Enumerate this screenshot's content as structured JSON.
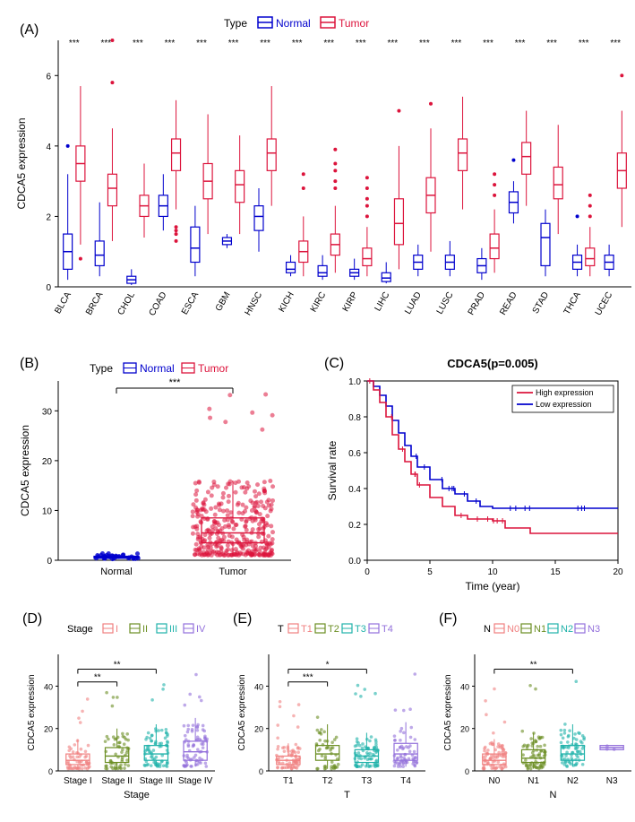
{
  "panelA": {
    "label": "(A)",
    "type": "boxplot-grouped",
    "legend": {
      "title": "Type",
      "items": [
        {
          "label": "Normal",
          "color": "#0000cd"
        },
        {
          "label": "Tumor",
          "color": "#dc143c"
        }
      ]
    },
    "ylabel": "CDCA5 expression",
    "ylim": [
      0,
      7
    ],
    "yticks": [
      0,
      2,
      4,
      6
    ],
    "categories": [
      "BLCA",
      "BRCA",
      "CHOL",
      "COAD",
      "ESCA",
      "GBM",
      "HNSC",
      "KICH",
      "KIRC",
      "KIRP",
      "LIHC",
      "LUAD",
      "LUSC",
      "PRAD",
      "READ",
      "STAD",
      "THCA",
      "UCEC"
    ],
    "sig": [
      "***",
      "***",
      "***",
      "***",
      "***",
      "***",
      "***",
      "***",
      "***",
      "***",
      "***",
      "***",
      "***",
      "***",
      "***",
      "***",
      "***",
      "***"
    ],
    "boxes_normal": [
      {
        "q1": 0.5,
        "med": 1.0,
        "q3": 1.5,
        "wl": 0.2,
        "wh": 3.2,
        "out": [
          4.0
        ]
      },
      {
        "q1": 0.6,
        "med": 0.9,
        "q3": 1.3,
        "wl": 0.3,
        "wh": 2.4,
        "out": []
      },
      {
        "q1": 0.1,
        "med": 0.2,
        "q3": 0.3,
        "wl": 0.05,
        "wh": 0.5,
        "out": []
      },
      {
        "q1": 2.0,
        "med": 2.3,
        "q3": 2.6,
        "wl": 1.6,
        "wh": 3.2,
        "out": []
      },
      {
        "q1": 0.7,
        "med": 1.1,
        "q3": 1.7,
        "wl": 0.3,
        "wh": 2.3,
        "out": []
      },
      {
        "q1": 1.2,
        "med": 1.3,
        "q3": 1.4,
        "wl": 1.1,
        "wh": 1.5,
        "out": []
      },
      {
        "q1": 1.6,
        "med": 2.0,
        "q3": 2.3,
        "wl": 1.0,
        "wh": 2.8,
        "out": []
      },
      {
        "q1": 0.4,
        "med": 0.5,
        "q3": 0.7,
        "wl": 0.3,
        "wh": 0.9,
        "out": []
      },
      {
        "q1": 0.3,
        "med": 0.4,
        "q3": 0.6,
        "wl": 0.2,
        "wh": 0.9,
        "out": []
      },
      {
        "q1": 0.3,
        "med": 0.4,
        "q3": 0.5,
        "wl": 0.2,
        "wh": 0.8,
        "out": []
      },
      {
        "q1": 0.15,
        "med": 0.25,
        "q3": 0.4,
        "wl": 0.1,
        "wh": 0.7,
        "out": []
      },
      {
        "q1": 0.5,
        "med": 0.7,
        "q3": 0.9,
        "wl": 0.3,
        "wh": 1.2,
        "out": []
      },
      {
        "q1": 0.5,
        "med": 0.7,
        "q3": 0.9,
        "wl": 0.3,
        "wh": 1.3,
        "out": []
      },
      {
        "q1": 0.4,
        "med": 0.6,
        "q3": 0.8,
        "wl": 0.2,
        "wh": 1.1,
        "out": []
      },
      {
        "q1": 2.1,
        "med": 2.4,
        "q3": 2.7,
        "wl": 1.8,
        "wh": 3.0,
        "out": [
          3.6
        ]
      },
      {
        "q1": 0.6,
        "med": 1.4,
        "q3": 1.8,
        "wl": 0.3,
        "wh": 2.2,
        "out": []
      },
      {
        "q1": 0.5,
        "med": 0.7,
        "q3": 0.9,
        "wl": 0.3,
        "wh": 1.2,
        "out": [
          2.0
        ]
      },
      {
        "q1": 0.5,
        "med": 0.7,
        "q3": 0.9,
        "wl": 0.3,
        "wh": 1.2,
        "out": []
      }
    ],
    "boxes_tumor": [
      {
        "q1": 3.0,
        "med": 3.5,
        "q3": 4.0,
        "wl": 1.2,
        "wh": 5.7,
        "out": [
          0.8
        ]
      },
      {
        "q1": 2.3,
        "med": 2.8,
        "q3": 3.2,
        "wl": 1.3,
        "wh": 4.5,
        "out": [
          5.8,
          7.0
        ]
      },
      {
        "q1": 2.0,
        "med": 2.3,
        "q3": 2.6,
        "wl": 1.4,
        "wh": 3.5,
        "out": []
      },
      {
        "q1": 3.3,
        "med": 3.8,
        "q3": 4.2,
        "wl": 2.2,
        "wh": 5.3,
        "out": [
          1.3,
          1.5,
          1.6,
          1.7
        ]
      },
      {
        "q1": 2.5,
        "med": 3.0,
        "q3": 3.5,
        "wl": 1.5,
        "wh": 4.9,
        "out": []
      },
      {
        "q1": 2.4,
        "med": 2.9,
        "q3": 3.3,
        "wl": 1.5,
        "wh": 4.3,
        "out": []
      },
      {
        "q1": 3.3,
        "med": 3.8,
        "q3": 4.2,
        "wl": 2.3,
        "wh": 5.7,
        "out": []
      },
      {
        "q1": 0.7,
        "med": 1.0,
        "q3": 1.3,
        "wl": 0.3,
        "wh": 2.0,
        "out": [
          2.8,
          3.2
        ]
      },
      {
        "q1": 0.9,
        "med": 1.2,
        "q3": 1.5,
        "wl": 0.4,
        "wh": 2.3,
        "out": [
          2.8,
          3.0,
          3.3,
          3.5,
          3.9
        ]
      },
      {
        "q1": 0.6,
        "med": 0.8,
        "q3": 1.1,
        "wl": 0.3,
        "wh": 1.7,
        "out": [
          2.0,
          2.3,
          2.5,
          2.8,
          3.1
        ]
      },
      {
        "q1": 1.2,
        "med": 1.8,
        "q3": 2.5,
        "wl": 0.5,
        "wh": 4.0,
        "out": [
          5.0
        ]
      },
      {
        "q1": 2.1,
        "med": 2.6,
        "q3": 3.1,
        "wl": 1.0,
        "wh": 4.5,
        "out": [
          5.2
        ]
      },
      {
        "q1": 3.3,
        "med": 3.8,
        "q3": 4.2,
        "wl": 2.2,
        "wh": 5.4,
        "out": []
      },
      {
        "q1": 0.8,
        "med": 1.1,
        "q3": 1.5,
        "wl": 0.4,
        "wh": 2.2,
        "out": [
          2.6,
          2.9,
          3.2
        ]
      },
      {
        "q1": 3.2,
        "med": 3.7,
        "q3": 4.1,
        "wl": 2.3,
        "wh": 5.0,
        "out": []
      },
      {
        "q1": 2.5,
        "med": 2.9,
        "q3": 3.4,
        "wl": 1.5,
        "wh": 4.6,
        "out": []
      },
      {
        "q1": 0.6,
        "med": 0.8,
        "q3": 1.1,
        "wl": 0.3,
        "wh": 1.7,
        "out": [
          2.0,
          2.3,
          2.6
        ]
      },
      {
        "q1": 2.8,
        "med": 3.3,
        "q3": 3.8,
        "wl": 1.7,
        "wh": 5.0,
        "out": [
          6.0
        ]
      }
    ],
    "label_fontsize": 11,
    "tick_fontsize": 10
  },
  "panelB": {
    "label": "(B)",
    "type": "scatter-boxplot",
    "legend": {
      "title": "Type",
      "items": [
        {
          "label": "Normal",
          "color": "#0000cd"
        },
        {
          "label": "Tumor",
          "color": "#dc143c"
        }
      ]
    },
    "ylabel": "CDCA5 expression",
    "ylim": [
      0,
      36
    ],
    "yticks": [
      0,
      10,
      20,
      30
    ],
    "categories": [
      "Normal",
      "Tumor"
    ],
    "sig": "***",
    "box_normal": {
      "q1": 0.4,
      "med": 0.6,
      "q3": 0.8,
      "wl": 0.2,
      "wh": 1.2
    },
    "box_tumor": {
      "q1": 3.5,
      "med": 5.5,
      "q3": 8.5,
      "wl": 1.0,
      "wh": 16.0
    },
    "label_fontsize": 11
  },
  "panelC": {
    "label": "(C)",
    "type": "survival",
    "title": "CDCA5(p=0.005)",
    "xlabel": "Time (year)",
    "ylabel": "Survival rate",
    "xlim": [
      0,
      20
    ],
    "ylim": [
      0,
      1.0
    ],
    "xticks": [
      0,
      5,
      10,
      15,
      20
    ],
    "yticks": [
      0,
      0.2,
      0.4,
      0.6,
      0.8,
      1.0
    ],
    "legend": [
      {
        "label": "High expression",
        "color": "#dc143c"
      },
      {
        "label": "Low expression",
        "color": "#0000cd"
      }
    ],
    "curve_high": [
      [
        0,
        1.0
      ],
      [
        0.5,
        0.95
      ],
      [
        1,
        0.88
      ],
      [
        1.5,
        0.8
      ],
      [
        2,
        0.7
      ],
      [
        2.5,
        0.62
      ],
      [
        3,
        0.55
      ],
      [
        3.5,
        0.48
      ],
      [
        4,
        0.42
      ],
      [
        5,
        0.35
      ],
      [
        6,
        0.3
      ],
      [
        7,
        0.25
      ],
      [
        8,
        0.23
      ],
      [
        10,
        0.22
      ],
      [
        11,
        0.18
      ],
      [
        13,
        0.15
      ],
      [
        20,
        0.15
      ]
    ],
    "curve_low": [
      [
        0,
        1.0
      ],
      [
        0.5,
        0.97
      ],
      [
        1,
        0.92
      ],
      [
        1.5,
        0.86
      ],
      [
        2,
        0.78
      ],
      [
        2.5,
        0.71
      ],
      [
        3,
        0.64
      ],
      [
        3.5,
        0.58
      ],
      [
        4,
        0.52
      ],
      [
        5,
        0.45
      ],
      [
        6,
        0.4
      ],
      [
        7,
        0.37
      ],
      [
        8,
        0.33
      ],
      [
        9,
        0.3
      ],
      [
        10,
        0.29
      ],
      [
        15,
        0.29
      ],
      [
        20,
        0.29
      ]
    ],
    "title_fontsize": 13,
    "label_fontsize": 11
  },
  "panelD": {
    "label": "(D)",
    "type": "scatter-boxplot",
    "legend": {
      "title": "Stage",
      "items": [
        {
          "label": "I",
          "color": "#f08080"
        },
        {
          "label": "II",
          "color": "#6b8e23"
        },
        {
          "label": "III",
          "color": "#20b2aa"
        },
        {
          "label": "IV",
          "color": "#9370db"
        }
      ]
    },
    "ylabel": "CDCA5 expression",
    "xlabel": "Stage",
    "ylim": [
      0,
      55
    ],
    "yticks": [
      0,
      20,
      40
    ],
    "categories": [
      "Stage I",
      "Stage II",
      "Stage III",
      "Stage IV"
    ],
    "sig": [
      {
        "from": 0,
        "to": 1,
        "label": "**",
        "y": 42
      },
      {
        "from": 0,
        "to": 2,
        "label": "**",
        "y": 48
      }
    ],
    "boxes": [
      {
        "q1": 3,
        "med": 5,
        "q3": 8,
        "wl": 1,
        "wh": 15
      },
      {
        "q1": 4,
        "med": 7,
        "q3": 11,
        "wl": 1,
        "wh": 20
      },
      {
        "q1": 5,
        "med": 8,
        "q3": 12,
        "wl": 2,
        "wh": 22
      },
      {
        "q1": 5,
        "med": 9,
        "q3": 14,
        "wl": 2,
        "wh": 25
      }
    ],
    "label_fontsize": 11
  },
  "panelE": {
    "label": "(E)",
    "type": "scatter-boxplot",
    "legend": {
      "title": "T",
      "items": [
        {
          "label": "T1",
          "color": "#f08080"
        },
        {
          "label": "T2",
          "color": "#6b8e23"
        },
        {
          "label": "T3",
          "color": "#20b2aa"
        },
        {
          "label": "T4",
          "color": "#9370db"
        }
      ]
    },
    "ylabel": "CDCA5 expression",
    "xlabel": "T",
    "ylim": [
      0,
      55
    ],
    "yticks": [
      0,
      20,
      40
    ],
    "categories": [
      "T1",
      "T2",
      "T3",
      "T4"
    ],
    "sig": [
      {
        "from": 0,
        "to": 1,
        "label": "***",
        "y": 42
      },
      {
        "from": 0,
        "to": 2,
        "label": "*",
        "y": 48
      }
    ],
    "boxes": [
      {
        "q1": 3,
        "med": 5,
        "q3": 7,
        "wl": 1,
        "wh": 13
      },
      {
        "q1": 5,
        "med": 8,
        "q3": 12,
        "wl": 1,
        "wh": 22
      },
      {
        "q1": 4,
        "med": 7,
        "q3": 10,
        "wl": 2,
        "wh": 18
      },
      {
        "q1": 5,
        "med": 8,
        "q3": 13,
        "wl": 2,
        "wh": 23
      }
    ],
    "label_fontsize": 11
  },
  "panelF": {
    "label": "(F)",
    "type": "scatter-boxplot",
    "legend": {
      "title": "N",
      "items": [
        {
          "label": "N0",
          "color": "#f08080"
        },
        {
          "label": "N1",
          "color": "#6b8e23"
        },
        {
          "label": "N2",
          "color": "#20b2aa"
        },
        {
          "label": "N3",
          "color": "#9370db"
        }
      ]
    },
    "ylabel": "CDCA5 expression",
    "xlabel": "N",
    "ylim": [
      0,
      55
    ],
    "yticks": [
      0,
      20,
      40
    ],
    "categories": [
      "N0",
      "N1",
      "N2",
      "N3"
    ],
    "sig": [
      {
        "from": 0,
        "to": 2,
        "label": "**",
        "y": 48
      }
    ],
    "boxes": [
      {
        "q1": 3,
        "med": 5,
        "q3": 8,
        "wl": 1,
        "wh": 15
      },
      {
        "q1": 4,
        "med": 6,
        "q3": 10,
        "wl": 1,
        "wh": 18
      },
      {
        "q1": 5,
        "med": 8,
        "q3": 12,
        "wl": 2,
        "wh": 22
      },
      {
        "q1": 10,
        "med": 11,
        "q3": 12,
        "wl": 10,
        "wh": 12
      }
    ],
    "label_fontsize": 11
  },
  "colors": {
    "normal": "#0000cd",
    "tumor": "#dc143c",
    "background": "#ffffff",
    "axis": "#000000",
    "grid": "#e0e0e0"
  }
}
